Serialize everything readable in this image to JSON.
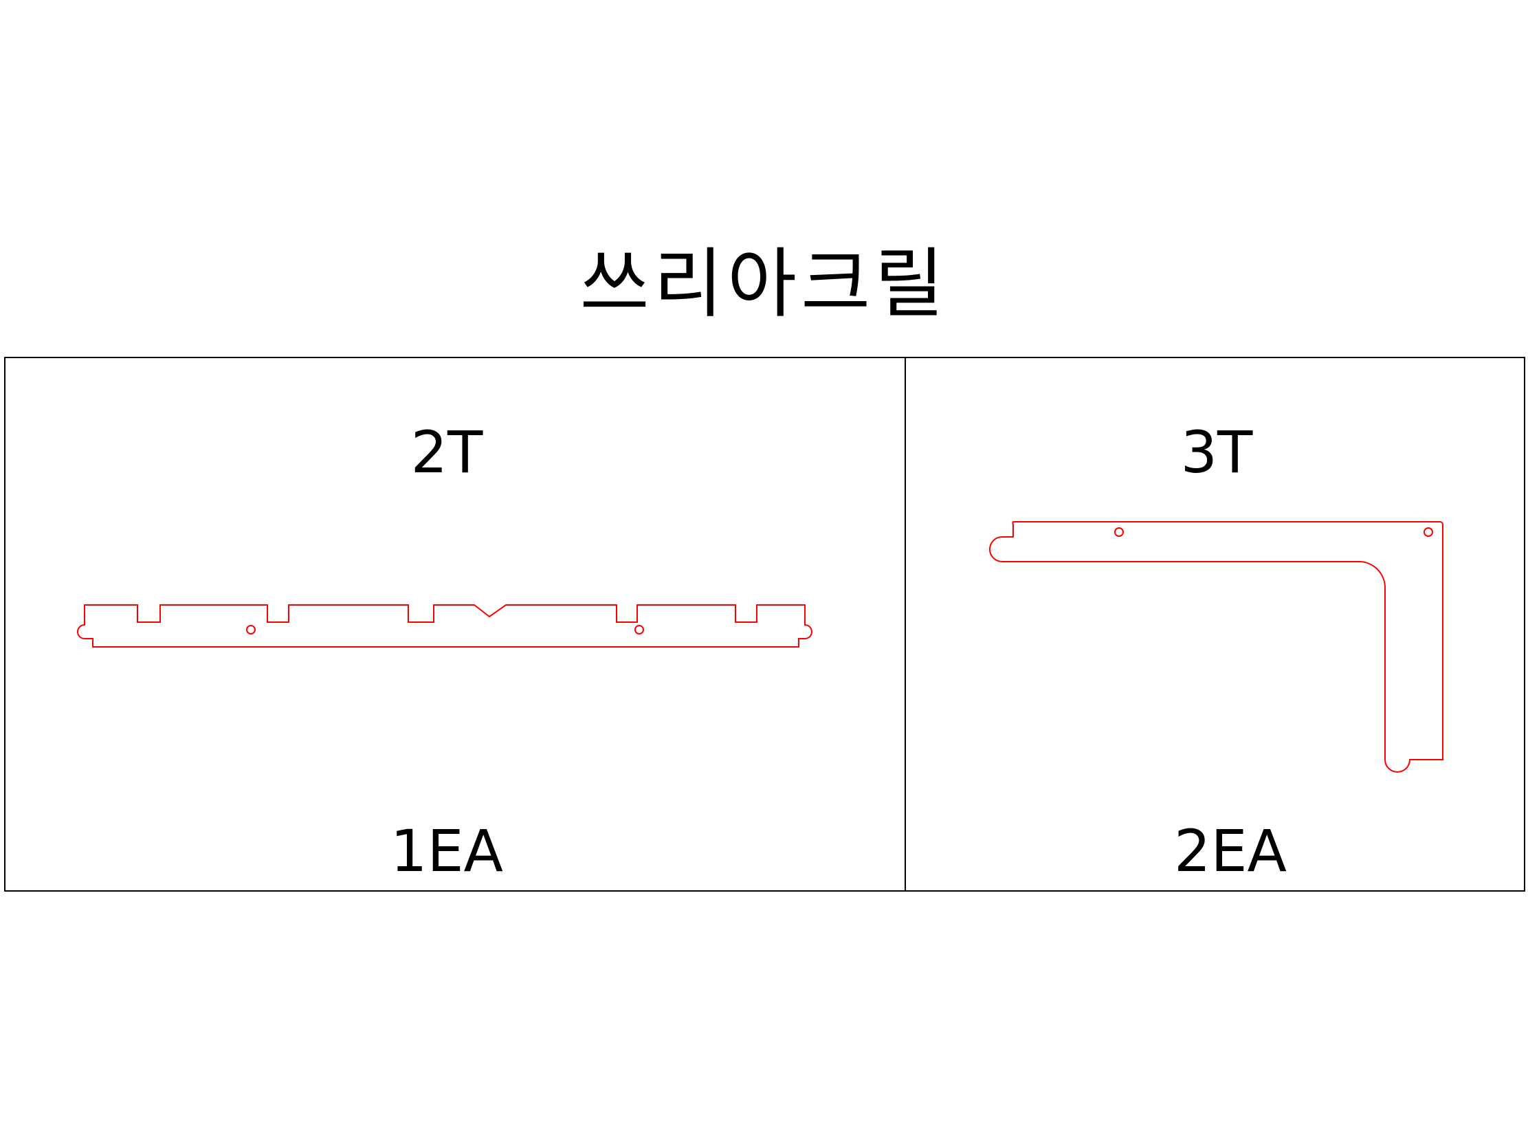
{
  "title": "쓰리아크릴",
  "left_panel": {
    "thickness": "2T",
    "quantity": "1EA"
  },
  "right_panel": {
    "thickness": "3T",
    "quantity": "2EA"
  },
  "colors": {
    "cut_line": "#ff0000",
    "frame_line": "#000000",
    "background": "#ffffff"
  }
}
